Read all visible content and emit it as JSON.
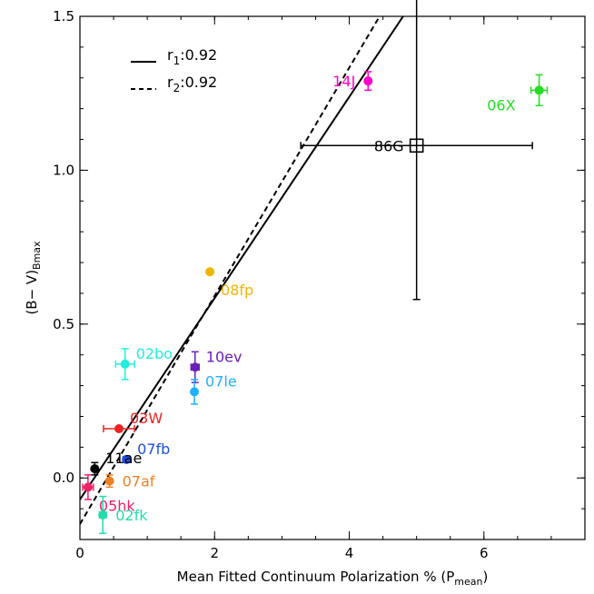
{
  "chart_data": {
    "type": "scatter",
    "title": "",
    "xlabel": "Mean Fitted Continuum Polarization % (P",
    "xlabel_sub": "mean",
    "xlabel_close": ")",
    "ylabel": "(B− V)",
    "ylabel_sub": "Bmax",
    "xlim": [
      0,
      7.5
    ],
    "ylim": [
      -0.2,
      1.5
    ],
    "x_ticks": [
      {
        "v": 0,
        "label": "0"
      },
      {
        "v": 2,
        "label": "2"
      },
      {
        "v": 4,
        "label": "4"
      },
      {
        "v": 6,
        "label": "6"
      }
    ],
    "y_ticks": [
      {
        "v": 0.0,
        "label": "0.0"
      },
      {
        "v": 0.5,
        "label": "0.5"
      },
      {
        "v": 1.0,
        "label": "1.0"
      },
      {
        "v": 1.5,
        "label": "1.5"
      }
    ],
    "legend": {
      "placement": "top-left",
      "entries": [
        {
          "label": "r",
          "sub": "1",
          "value": ":0.92",
          "style": "solid"
        },
        {
          "label": "r",
          "sub": "2",
          "value": ":0.92",
          "style": "dashed"
        }
      ]
    },
    "fit_lines": [
      {
        "name": "r1",
        "style": "solid",
        "x": [
          0,
          4.8
        ],
        "y": [
          -0.07,
          1.5
        ]
      },
      {
        "name": "r2",
        "style": "dashed",
        "x": [
          0,
          4.45
        ],
        "y": [
          -0.15,
          1.5
        ]
      }
    ],
    "points": [
      {
        "label": "14J",
        "x": 4.28,
        "y": 1.29,
        "xerr": 0.0,
        "yerr": 0.03,
        "color": "#ff00cc",
        "label_pos": "left"
      },
      {
        "label": "06X",
        "x": 6.82,
        "y": 1.26,
        "xerr": 0.12,
        "yerr": 0.05,
        "color": "#22dd22",
        "label_pos": "below-left"
      },
      {
        "label": "86G",
        "x": 5.0,
        "y": 1.08,
        "xerr": 1.72,
        "yerr": 0.5,
        "color": "#000000",
        "label_pos": "left",
        "marker": "square-open"
      },
      {
        "label": "08fp",
        "x": 1.93,
        "y": 0.67,
        "xerr": 0.0,
        "yerr": 0.0,
        "color": "#f0b400",
        "label_pos": "below-right"
      },
      {
        "label": "10ev",
        "x": 1.71,
        "y": 0.36,
        "xerr": 0.06,
        "yerr": 0.05,
        "color": "#6a1fb5",
        "label_pos": "above-right"
      },
      {
        "label": "07le",
        "x": 1.7,
        "y": 0.28,
        "xerr": 0.0,
        "yerr": 0.04,
        "color": "#1fb1ff",
        "label_pos": "above-right"
      },
      {
        "label": "02bo",
        "x": 0.67,
        "y": 0.37,
        "xerr": 0.14,
        "yerr": 0.05,
        "color": "#22eedd",
        "label_pos": "above-right"
      },
      {
        "label": "03W",
        "x": 0.58,
        "y": 0.16,
        "xerr": 0.23,
        "yerr": 0.0,
        "color": "#ee2222",
        "label_pos": "above-right"
      },
      {
        "label": "07fb",
        "x": 0.69,
        "y": 0.06,
        "xerr": 0.05,
        "yerr": 0.0,
        "color": "#1f4fe0",
        "label_pos": "above-right"
      },
      {
        "label": "11ae",
        "x": 0.22,
        "y": 0.03,
        "xerr": 0.0,
        "yerr": 0.02,
        "color": "#000000",
        "label_pos": "above-right"
      },
      {
        "label": "07af",
        "x": 0.44,
        "y": -0.01,
        "xerr": 0.0,
        "yerr": 0.02,
        "color": "#f08020",
        "label_pos": "right"
      },
      {
        "label": "05hk",
        "x": 0.12,
        "y": -0.03,
        "xerr": 0.08,
        "yerr": 0.04,
        "color": "#ee2266",
        "label_pos": "below-right"
      },
      {
        "label": "02fk",
        "x": 0.34,
        "y": -0.12,
        "xerr": 0.05,
        "yerr": 0.06,
        "color": "#22ddaa",
        "label_pos": "right"
      }
    ]
  }
}
